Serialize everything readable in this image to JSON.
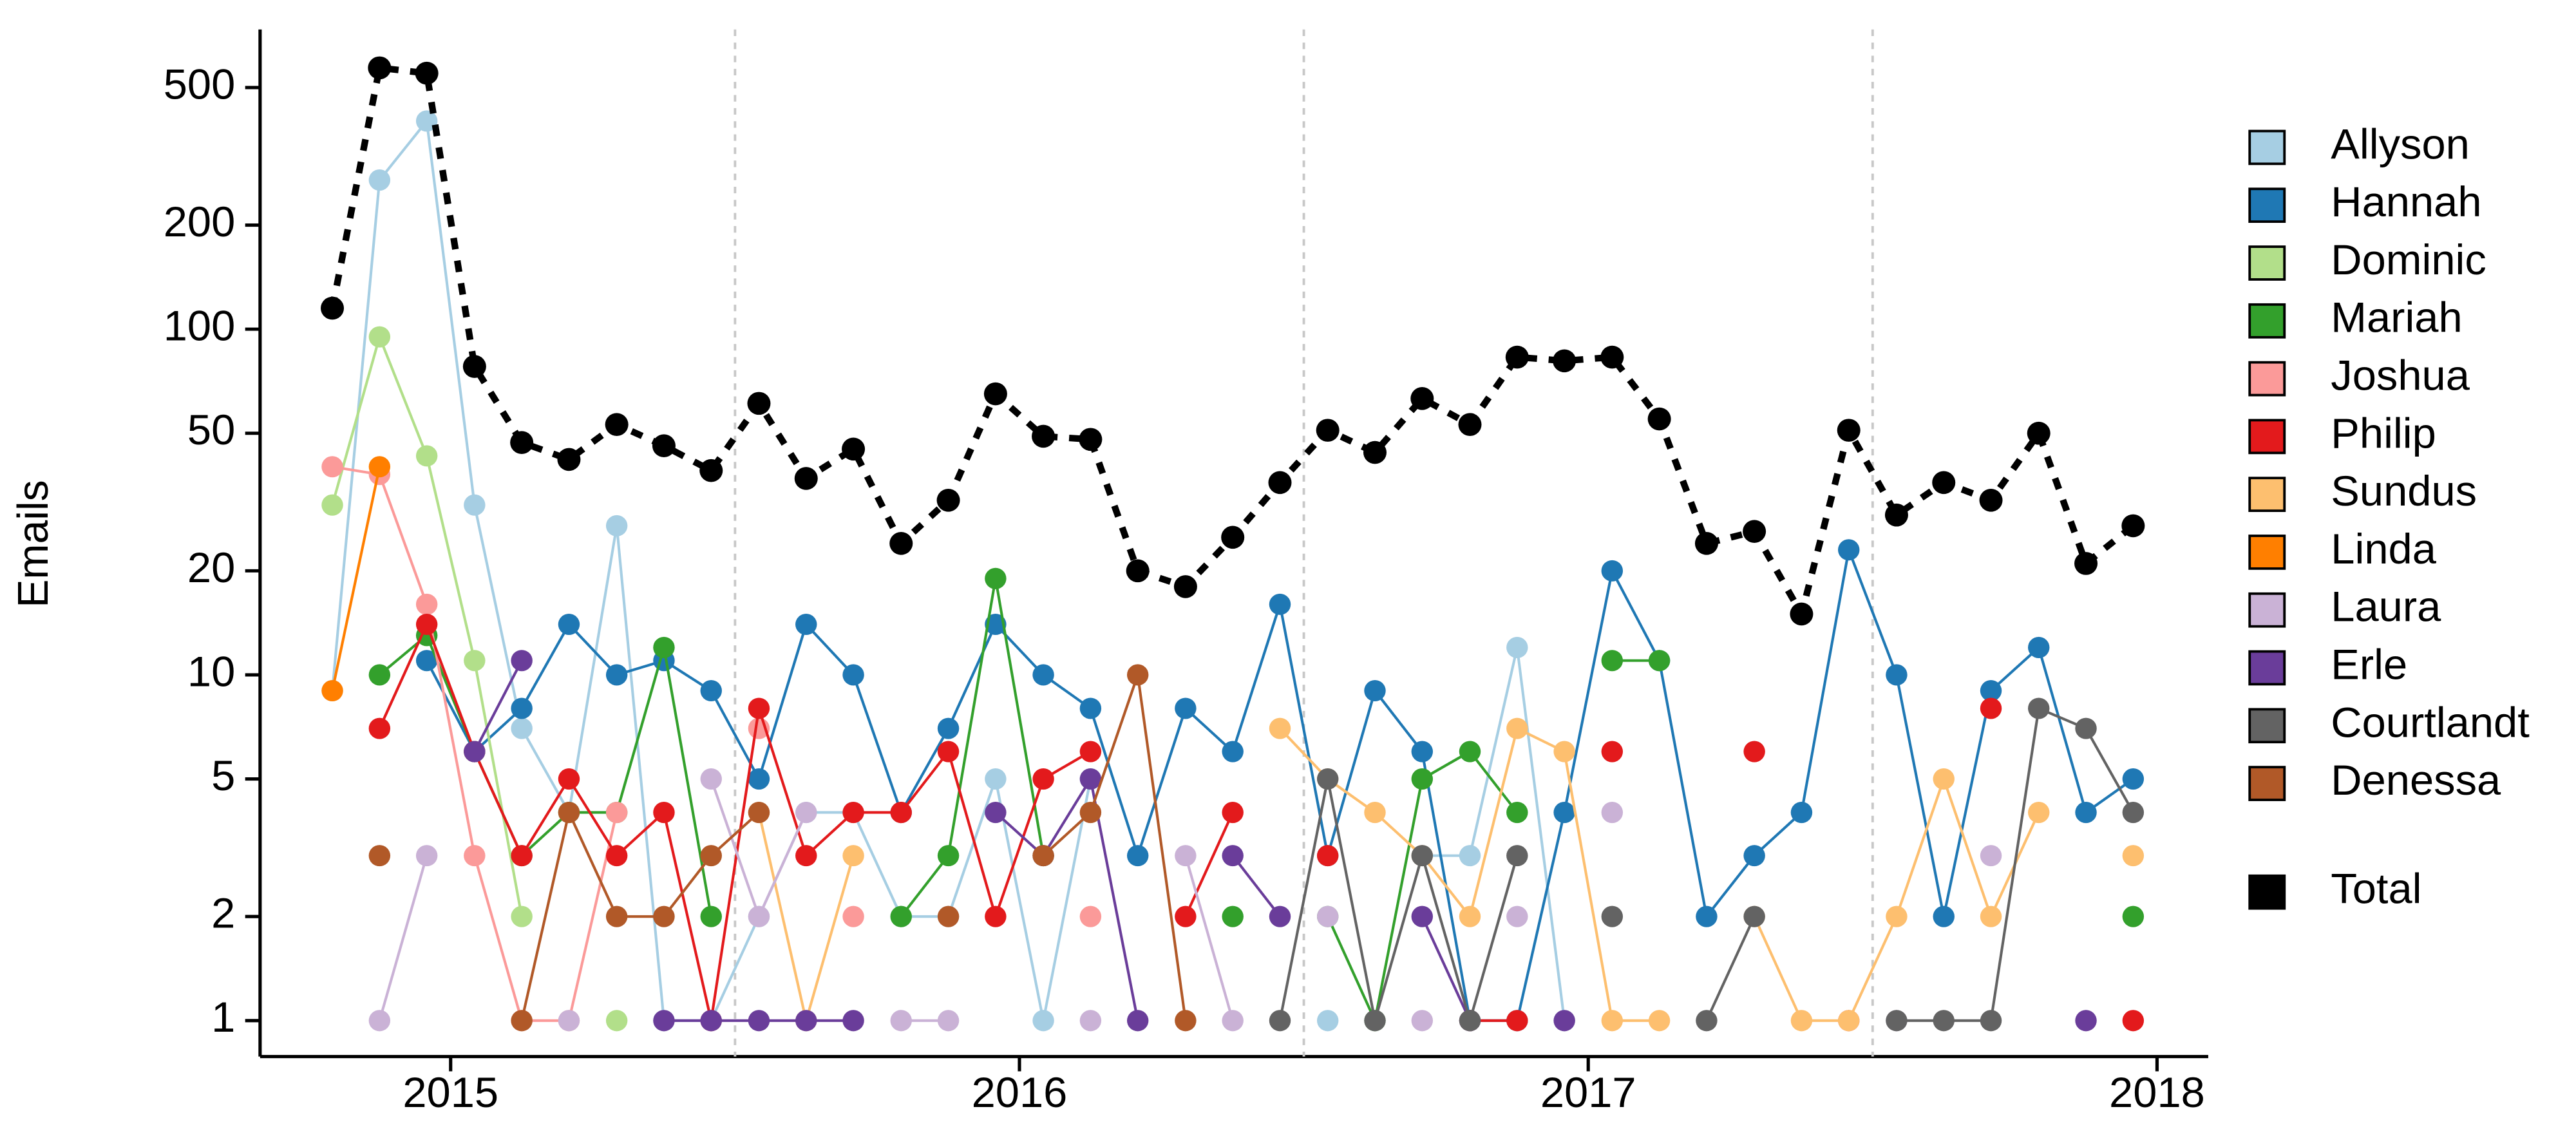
{
  "chart_data": {
    "type": "line",
    "y_label": "Emails",
    "x": [
      2014.792,
      2014.875,
      2014.958,
      2015.042,
      2015.125,
      2015.208,
      2015.292,
      2015.375,
      2015.458,
      2015.542,
      2015.625,
      2015.708,
      2015.792,
      2015.875,
      2015.958,
      2016.042,
      2016.125,
      2016.208,
      2016.292,
      2016.375,
      2016.458,
      2016.542,
      2016.625,
      2016.708,
      2016.792,
      2016.875,
      2016.958,
      2017.042,
      2017.125,
      2017.208,
      2017.292,
      2017.375,
      2017.458,
      2017.542,
      2017.625,
      2017.708,
      2017.792,
      2017.875,
      2017.958
    ],
    "xlim": [
      2014.665,
      2018.09
    ],
    "xticks": [
      2015,
      2016,
      2017,
      2018
    ],
    "xgrid_minor": [
      2015.5,
      2016.5,
      2017.5
    ],
    "ylim": [
      0.787,
      736
    ],
    "yticks": [
      1,
      2,
      5,
      10,
      20,
      50,
      100,
      200,
      500
    ],
    "log_y": true,
    "grid": false,
    "legend_position": "right",
    "series": [
      {
        "name": "Allyson",
        "color": "#a6cee3",
        "values": [
          9,
          270,
          400,
          31,
          7,
          4,
          27,
          1,
          1,
          2,
          4,
          4,
          2,
          2,
          5,
          1,
          5,
          null,
          null,
          null,
          null,
          1,
          null,
          3,
          3,
          12,
          1,
          null,
          null,
          null,
          null,
          null,
          null,
          null,
          null,
          null,
          null,
          null,
          null
        ]
      },
      {
        "name": "Hannah",
        "color": "#1f78b4",
        "values": [
          null,
          null,
          11,
          6,
          8,
          14,
          10,
          11,
          9,
          5,
          14,
          10,
          4,
          7,
          14,
          10,
          8,
          3,
          8,
          6,
          16,
          3,
          9,
          6,
          1,
          1,
          4,
          20,
          11,
          2,
          3,
          4,
          23,
          10,
          2,
          9,
          12,
          4,
          5
        ]
      },
      {
        "name": "Dominic",
        "color": "#b2df8a",
        "values": [
          31,
          95,
          43,
          11,
          2,
          null,
          1,
          null,
          null,
          null,
          null,
          null,
          null,
          null,
          null,
          null,
          null,
          null,
          null,
          null,
          null,
          null,
          null,
          null,
          null,
          null,
          null,
          null,
          null,
          null,
          null,
          null,
          null,
          null,
          null,
          null,
          null,
          null,
          null
        ]
      },
      {
        "name": "Mariah",
        "color": "#33a02c",
        "values": [
          null,
          10,
          13,
          6,
          3,
          4,
          4,
          12,
          2,
          null,
          null,
          null,
          2,
          3,
          19,
          3,
          null,
          null,
          null,
          2,
          null,
          2,
          1,
          5,
          6,
          4,
          null,
          11,
          11,
          null,
          null,
          null,
          null,
          null,
          null,
          null,
          null,
          null,
          2
        ]
      },
      {
        "name": "Joshua",
        "color": "#fb9a99",
        "values": [
          40,
          38,
          16,
          3,
          1,
          1,
          4,
          null,
          null,
          7,
          null,
          2,
          null,
          null,
          null,
          null,
          2,
          null,
          null,
          null,
          null,
          null,
          null,
          null,
          null,
          null,
          null,
          null,
          null,
          null,
          null,
          null,
          null,
          null,
          null,
          null,
          null,
          null,
          null
        ]
      },
      {
        "name": "Philip",
        "color": "#e31a1c",
        "values": [
          null,
          7,
          14,
          6,
          3,
          5,
          3,
          4,
          1,
          8,
          3,
          4,
          4,
          6,
          2,
          5,
          6,
          null,
          2,
          4,
          null,
          3,
          null,
          null,
          1,
          1,
          null,
          6,
          null,
          null,
          6,
          null,
          1,
          null,
          null,
          8,
          null,
          null,
          1
        ]
      },
      {
        "name": "Sundus",
        "color": "#fdbf6f",
        "values": [
          null,
          null,
          null,
          null,
          null,
          null,
          null,
          null,
          null,
          4,
          1,
          3,
          null,
          null,
          null,
          null,
          null,
          null,
          null,
          null,
          7,
          5,
          4,
          3,
          2,
          7,
          6,
          1,
          1,
          null,
          2,
          1,
          1,
          2,
          5,
          2,
          4,
          null,
          3
        ]
      },
      {
        "name": "Linda",
        "color": "#ff7f00",
        "values": [
          9,
          40,
          null,
          null,
          null,
          null,
          null,
          null,
          null,
          null,
          null,
          null,
          null,
          null,
          null,
          null,
          null,
          null,
          null,
          null,
          null,
          null,
          null,
          null,
          null,
          null,
          null,
          null,
          null,
          null,
          null,
          null,
          null,
          null,
          null,
          null,
          null,
          null,
          null
        ]
      },
      {
        "name": "Laura",
        "color": "#cab2d6",
        "values": [
          null,
          1,
          3,
          null,
          null,
          1,
          null,
          null,
          5,
          2,
          4,
          null,
          1,
          1,
          null,
          null,
          1,
          null,
          3,
          1,
          null,
          2,
          null,
          1,
          null,
          2,
          null,
          4,
          null,
          null,
          null,
          null,
          null,
          1,
          null,
          3,
          null,
          null,
          null
        ]
      },
      {
        "name": "Erle",
        "color": "#6a3d9a",
        "values": [
          null,
          null,
          null,
          6,
          11,
          null,
          null,
          1,
          1,
          1,
          1,
          1,
          null,
          null,
          4,
          3,
          5,
          1,
          null,
          3,
          2,
          null,
          null,
          2,
          1,
          null,
          1,
          null,
          null,
          null,
          null,
          null,
          null,
          null,
          null,
          null,
          null,
          1,
          null
        ]
      },
      {
        "name": "Courtlandt",
        "color": "#636363",
        "values": [
          null,
          null,
          null,
          null,
          null,
          null,
          null,
          null,
          null,
          null,
          null,
          null,
          null,
          null,
          null,
          null,
          null,
          null,
          null,
          null,
          1,
          5,
          1,
          3,
          1,
          3,
          null,
          2,
          null,
          1,
          2,
          null,
          null,
          1,
          1,
          1,
          8,
          7,
          4
        ]
      },
      {
        "name": "Denessa",
        "color": "#b15928",
        "values": [
          null,
          3,
          null,
          null,
          1,
          4,
          2,
          2,
          3,
          4,
          null,
          null,
          null,
          2,
          null,
          3,
          4,
          10,
          1,
          null,
          null,
          null,
          null,
          null,
          null,
          null,
          null,
          null,
          null,
          null,
          null,
          null,
          null,
          null,
          null,
          null,
          null,
          null,
          null
        ]
      },
      {
        "name": "Total",
        "color": "#000000",
        "linestyle": "dashed",
        "values": [
          115,
          570,
          550,
          78,
          47,
          42,
          53,
          46,
          39,
          61,
          37,
          45,
          24,
          32,
          65,
          49,
          48,
          20,
          18,
          25,
          36,
          51,
          44,
          63,
          53,
          83,
          81,
          83,
          55,
          24,
          26,
          15,
          51,
          29,
          36,
          32,
          50,
          21,
          27
        ]
      }
    ]
  }
}
